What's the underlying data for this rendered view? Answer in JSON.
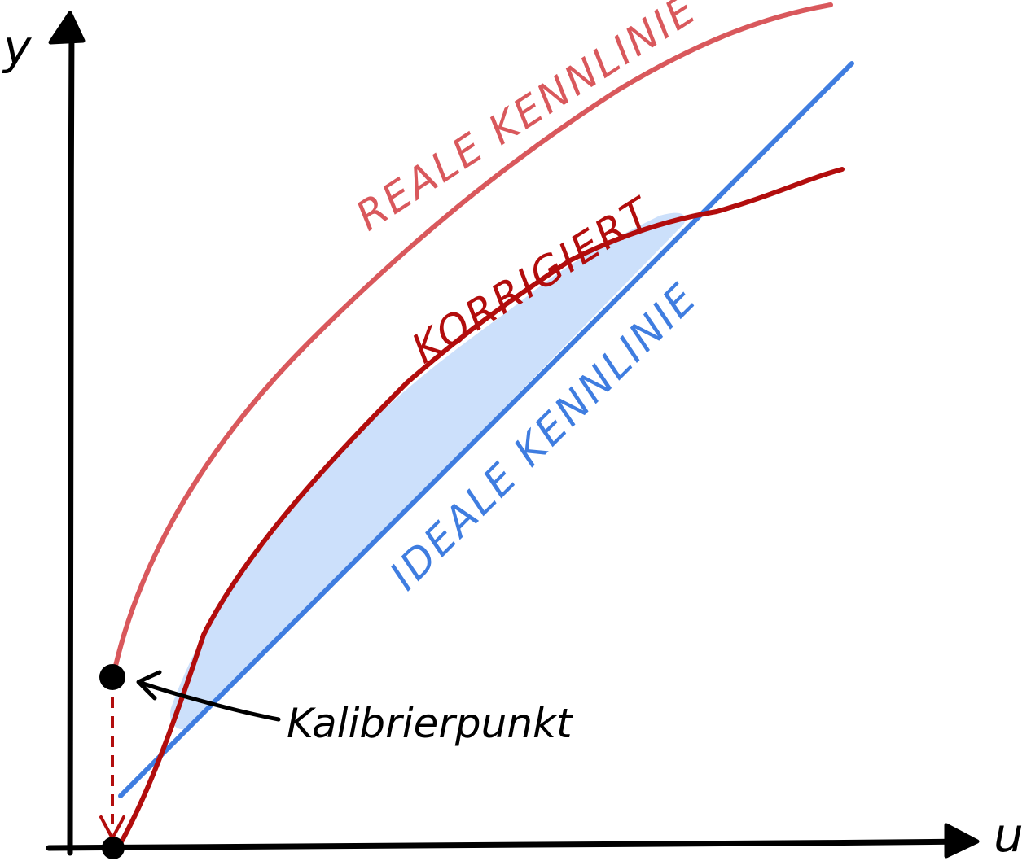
{
  "axes": {
    "y_label": "y",
    "x_label": "u"
  },
  "curves": {
    "real": {
      "label": "REALE KENNLINIE",
      "color": "#d9585c"
    },
    "ideal": {
      "label": "IDEALE KENNLINIE",
      "color": "#3f7de0"
    },
    "corrected": {
      "label": "KORRIGIERT",
      "color": "#b20d0d"
    }
  },
  "shaded_region_color": "#cce0fb",
  "calibration": {
    "label": "Kalibrierpunkt"
  }
}
